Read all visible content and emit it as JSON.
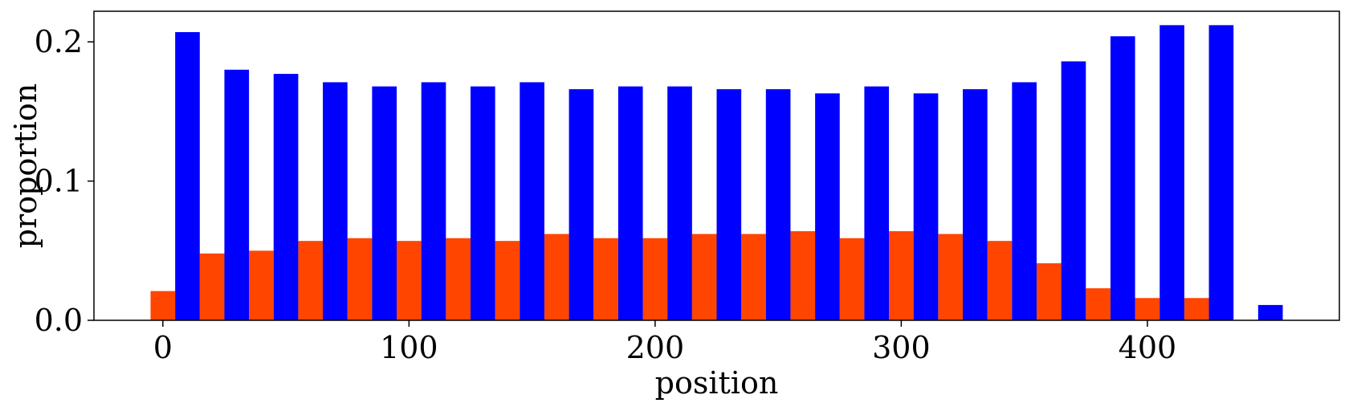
{
  "chart_data": {
    "type": "bar",
    "title": "",
    "xlabel": "position",
    "ylabel": "proportion",
    "xlim": [
      -28,
      478
    ],
    "ylim": [
      0,
      0.222
    ],
    "bar_width": 10,
    "xticks": [
      0,
      100,
      200,
      300,
      400
    ],
    "xtick_labels": [
      "0",
      "100",
      "200",
      "300",
      "400"
    ],
    "yticks": [
      0.0,
      0.1,
      0.2
    ],
    "ytick_labels": [
      "0.0",
      "0.1",
      "0.2"
    ],
    "grid": false,
    "series": [
      {
        "color": "#FF4500",
        "x": [
          0,
          20,
          40,
          60,
          80,
          100,
          120,
          140,
          160,
          180,
          200,
          220,
          240,
          260,
          280,
          300,
          320,
          340,
          360,
          380,
          400,
          420
        ],
        "values": [
          0.021,
          0.048,
          0.05,
          0.057,
          0.059,
          0.057,
          0.059,
          0.057,
          0.062,
          0.059,
          0.059,
          0.062,
          0.062,
          0.064,
          0.059,
          0.064,
          0.062,
          0.057,
          0.041,
          0.023,
          0.016,
          0.016
        ]
      },
      {
        "color": "#0000FF",
        "x": [
          10,
          30,
          50,
          70,
          90,
          110,
          130,
          150,
          170,
          190,
          210,
          230,
          250,
          270,
          290,
          310,
          330,
          350,
          370,
          390,
          410,
          430,
          450
        ],
        "values": [
          0.207,
          0.18,
          0.177,
          0.171,
          0.168,
          0.171,
          0.168,
          0.171,
          0.166,
          0.168,
          0.168,
          0.166,
          0.166,
          0.163,
          0.168,
          0.163,
          0.166,
          0.171,
          0.186,
          0.204,
          0.212,
          0.212,
          0.011
        ]
      }
    ]
  }
}
